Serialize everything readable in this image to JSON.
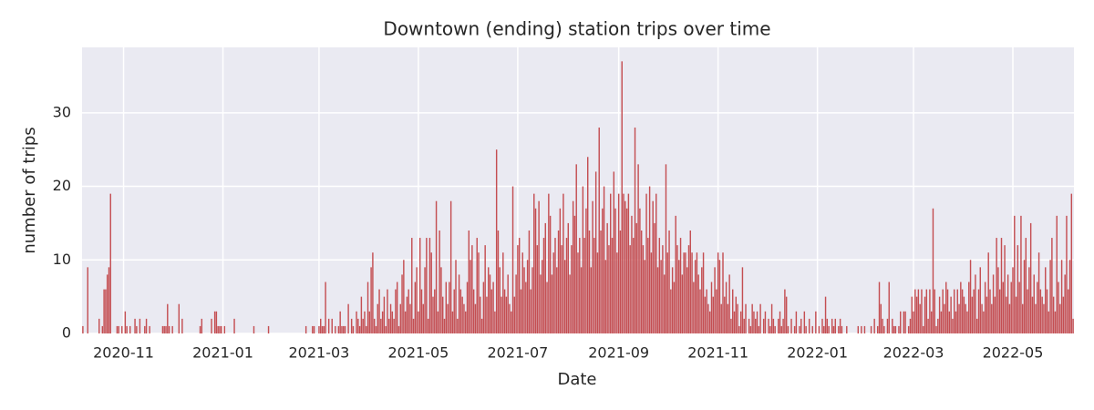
{
  "chart_data": {
    "type": "bar",
    "title": "Downtown (ending) station trips over time",
    "x_label": "Date",
    "y_label": "number of trips",
    "color": "#c44e52",
    "grid": true,
    "xlim": [
      -0.5,
      608.5
    ],
    "ylim": [
      0,
      38.9
    ],
    "yticks": [
      0,
      10,
      20,
      30
    ],
    "xticks": [
      {
        "value": 25,
        "label": "2020-11"
      },
      {
        "value": 86,
        "label": "2021-01"
      },
      {
        "value": 145,
        "label": "2021-03"
      },
      {
        "value": 206,
        "label": "2021-05"
      },
      {
        "value": 267,
        "label": "2021-07"
      },
      {
        "value": 329,
        "label": "2021-09"
      },
      {
        "value": 390,
        "label": "2021-11"
      },
      {
        "value": 451,
        "label": "2022-01"
      },
      {
        "value": 510,
        "label": "2022-03"
      },
      {
        "value": 571,
        "label": "2022-05"
      }
    ],
    "values": [
      1,
      0,
      0,
      9,
      0,
      0,
      0,
      0,
      0,
      0,
      2,
      0,
      1,
      6,
      6,
      8,
      9,
      19,
      0,
      0,
      0,
      1,
      1,
      0,
      1,
      0,
      3,
      1,
      0,
      1,
      0,
      0,
      2,
      1,
      0,
      2,
      0,
      0,
      1,
      2,
      0,
      1,
      0,
      0,
      0,
      0,
      0,
      0,
      0,
      1,
      1,
      1,
      4,
      1,
      0,
      1,
      0,
      0,
      0,
      4,
      0,
      2,
      0,
      0,
      0,
      0,
      0,
      0,
      0,
      0,
      0,
      0,
      1,
      2,
      0,
      0,
      0,
      0,
      0,
      2,
      0,
      3,
      3,
      1,
      1,
      1,
      0,
      1,
      0,
      0,
      0,
      0,
      0,
      2,
      0,
      0,
      0,
      0,
      0,
      0,
      0,
      0,
      0,
      0,
      0,
      1,
      0,
      0,
      0,
      0,
      0,
      0,
      0,
      0,
      1,
      0,
      0,
      0,
      0,
      0,
      0,
      0,
      0,
      0,
      0,
      0,
      0,
      0,
      0,
      0,
      0,
      0,
      0,
      0,
      0,
      0,
      0,
      1,
      0,
      0,
      0,
      1,
      1,
      0,
      0,
      1,
      2,
      1,
      1,
      7,
      0,
      2,
      0,
      2,
      0,
      1,
      0,
      1,
      3,
      1,
      1,
      1,
      0,
      4,
      0,
      2,
      1,
      0,
      3,
      2,
      1,
      5,
      2,
      3,
      1,
      7,
      3,
      9,
      11,
      2,
      1,
      4,
      6,
      2,
      3,
      5,
      1,
      6,
      2,
      4,
      3,
      2,
      6,
      7,
      1,
      4,
      8,
      10,
      3,
      5,
      6,
      4,
      13,
      2,
      7,
      9,
      3,
      13,
      6,
      4,
      9,
      13,
      2,
      13,
      11,
      5,
      6,
      18,
      3,
      14,
      9,
      5,
      2,
      7,
      4,
      7,
      18,
      3,
      6,
      10,
      2,
      8,
      6,
      5,
      4,
      3,
      7,
      14,
      10,
      12,
      6,
      4,
      13,
      11,
      5,
      2,
      7,
      12,
      5,
      9,
      8,
      6,
      7,
      3,
      25,
      14,
      9,
      5,
      11,
      6,
      5,
      8,
      4,
      3,
      20,
      5,
      8,
      12,
      13,
      6,
      11,
      9,
      7,
      10,
      14,
      6,
      9,
      19,
      17,
      12,
      18,
      8,
      10,
      13,
      15,
      7,
      19,
      16,
      8,
      11,
      13,
      9,
      14,
      17,
      12,
      19,
      10,
      13,
      15,
      8,
      12,
      18,
      16,
      23,
      11,
      13,
      9,
      20,
      13,
      17,
      24,
      14,
      9,
      18,
      13,
      22,
      11,
      28,
      14,
      17,
      20,
      10,
      15,
      12,
      19,
      13,
      22,
      17,
      11,
      19,
      14,
      37,
      19,
      18,
      17,
      19,
      12,
      16,
      13,
      28,
      15,
      23,
      17,
      14,
      12,
      10,
      19,
      13,
      20,
      11,
      18,
      15,
      19,
      9,
      13,
      10,
      12,
      8,
      23,
      11,
      14,
      6,
      9,
      7,
      16,
      12,
      10,
      13,
      8,
      11,
      11,
      9,
      12,
      14,
      11,
      7,
      10,
      11,
      8,
      6,
      9,
      11,
      5,
      6,
      4,
      3,
      7,
      5,
      9,
      6,
      11,
      10,
      4,
      11,
      5,
      7,
      4,
      8,
      2,
      6,
      3,
      5,
      4,
      1,
      3,
      9,
      2,
      4,
      0,
      2,
      1,
      4,
      3,
      2,
      3,
      1,
      4,
      0,
      2,
      3,
      0,
      2,
      1,
      4,
      2,
      1,
      0,
      2,
      3,
      1,
      2,
      6,
      5,
      1,
      0,
      2,
      0,
      1,
      3,
      0,
      1,
      2,
      0,
      3,
      1,
      0,
      2,
      0,
      1,
      0,
      3,
      0,
      1,
      0,
      2,
      1,
      5,
      2,
      1,
      0,
      2,
      1,
      2,
      0,
      1,
      2,
      1,
      0,
      0,
      1,
      0,
      0,
      0,
      0,
      0,
      0,
      1,
      0,
      1,
      0,
      1,
      0,
      0,
      0,
      1,
      0,
      2,
      0,
      1,
      7,
      4,
      2,
      1,
      0,
      2,
      7,
      0,
      2,
      1,
      1,
      0,
      1,
      3,
      0,
      3,
      3,
      0,
      1,
      2,
      5,
      3,
      6,
      5,
      6,
      4,
      6,
      1,
      5,
      6,
      2,
      6,
      3,
      17,
      6,
      1,
      2,
      5,
      3,
      6,
      4,
      7,
      6,
      3,
      5,
      2,
      6,
      3,
      6,
      4,
      7,
      6,
      5,
      4,
      3,
      7,
      10,
      5,
      6,
      8,
      2,
      6,
      9,
      4,
      3,
      7,
      5,
      11,
      6,
      4,
      8,
      5,
      13,
      9,
      6,
      13,
      7,
      12,
      5,
      8,
      4,
      7,
      9,
      16,
      5,
      12,
      7,
      16,
      4,
      10,
      13,
      6,
      9,
      15,
      5,
      8,
      4,
      7,
      11,
      6,
      5,
      4,
      9,
      6,
      3,
      10,
      13,
      5,
      3,
      16,
      7,
      4,
      10,
      5,
      8,
      16,
      6,
      10,
      19,
      2
    ]
  }
}
